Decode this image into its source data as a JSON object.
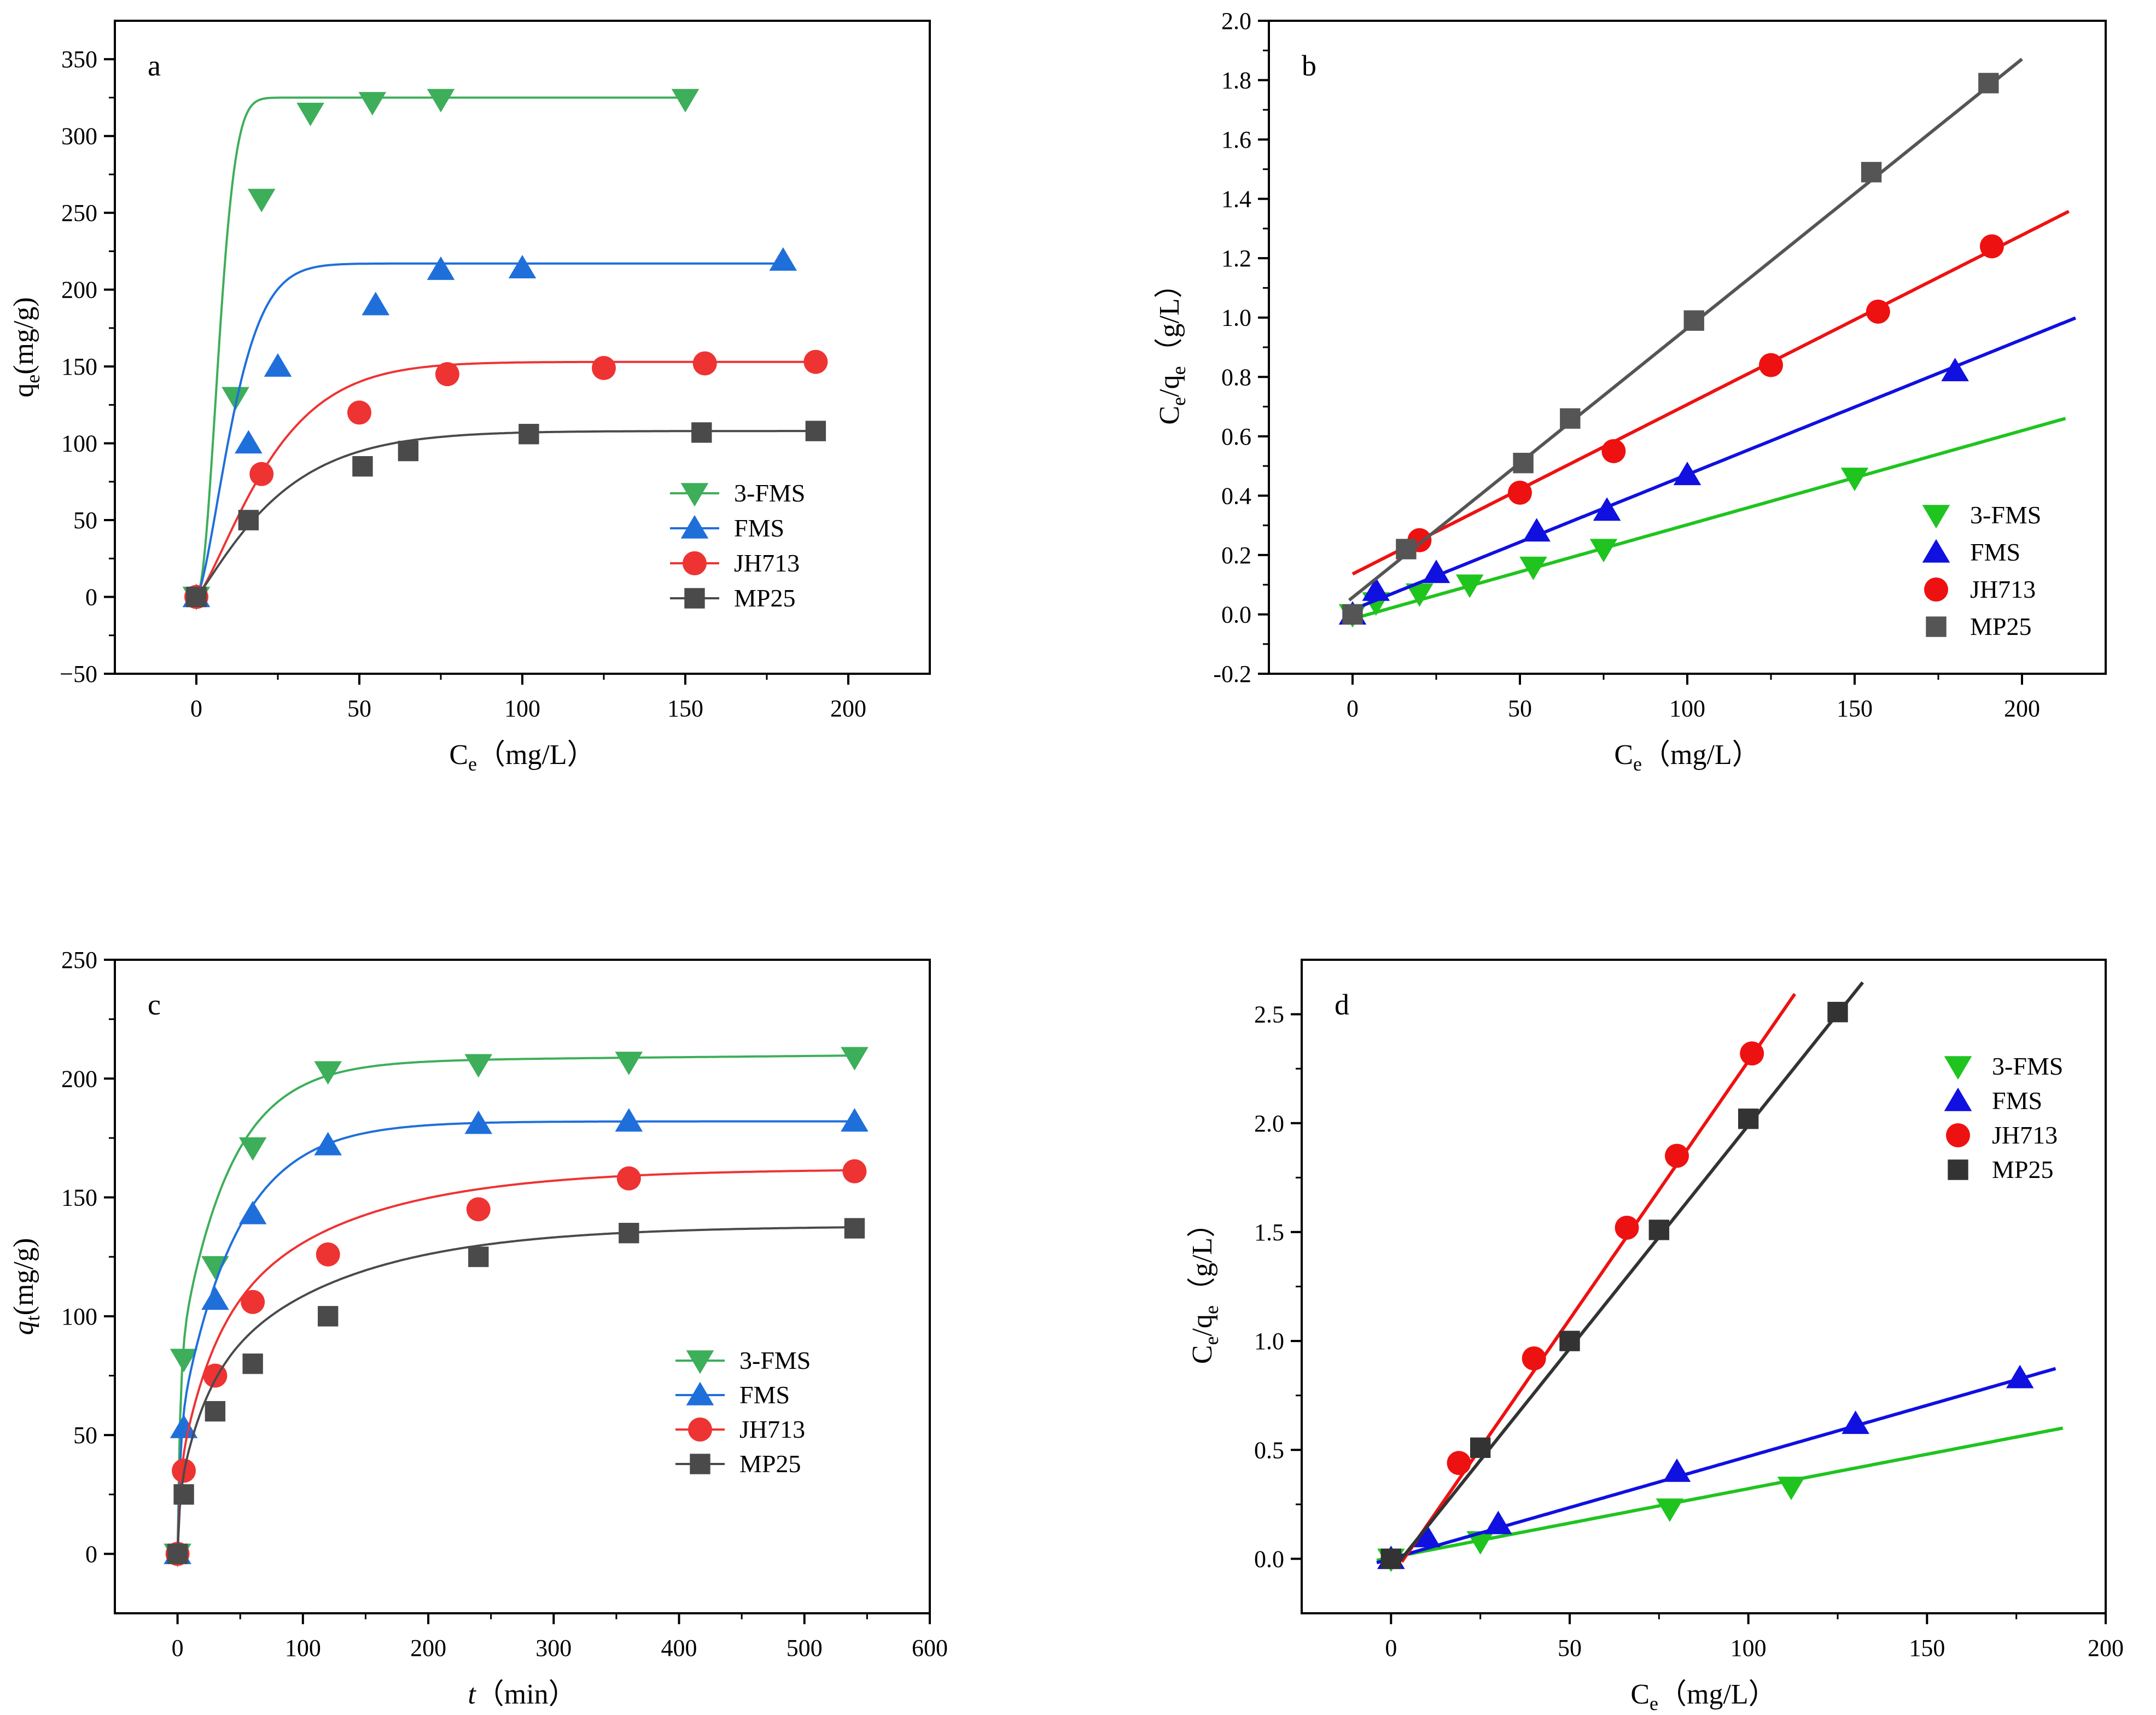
{
  "figure": {
    "colors": {
      "axis": "#000000",
      "green": "#3dae5a",
      "blue": "#1f6fdb",
      "red": "#ee3333",
      "black": "#4a4a4a"
    },
    "chart_data": [
      {
        "id": "a",
        "type": "scatter",
        "label": "a",
        "xlabel": {
          "main": "C",
          "sub": "e",
          "rest": "（mg/L）"
        },
        "ylabel": {
          "main": "q",
          "sub": "e",
          "rest": "(mg/g)"
        },
        "xlim": [
          -25,
          225
        ],
        "ylim": [
          -50,
          375
        ],
        "xticks": [
          0,
          50,
          100,
          150,
          200
        ],
        "xtick_labels": [
          "0",
          "50",
          "100",
          "150",
          "200"
        ],
        "yticks": [
          -50,
          0,
          50,
          100,
          150,
          200,
          250,
          300,
          350
        ],
        "ytick_labels": [
          "−50",
          "0",
          "50",
          "100",
          "150",
          "200",
          "250",
          "300",
          "350"
        ],
        "legend_position": "center-right",
        "legend_line_samples": true,
        "series": [
          {
            "name": "3-FMS",
            "marker": "triangle-down",
            "color": "#3dae5a",
            "line_width": 4,
            "x": [
              0,
              12,
              20,
              35,
              54,
              75,
              150
            ],
            "y": [
              0,
              130,
              259,
              315,
              322,
              324,
              324
            ],
            "fit": {
              "kind": "sigmoid",
              "a": 325,
              "k": 0.12,
              "n": 2
            }
          },
          {
            "name": "FMS",
            "marker": "triangle-up",
            "color": "#1f6fdb",
            "line_width": 4,
            "x": [
              0,
              16,
              25,
              55,
              75,
              100,
              180
            ],
            "y": [
              0,
              100,
              150,
              190,
              213,
              214,
              219
            ],
            "fit": {
              "kind": "sigmoid",
              "a": 217,
              "k": 0.075,
              "n": 1.5
            }
          },
          {
            "name": "JH713",
            "marker": "circle",
            "color": "#ee3333",
            "line_width": 4,
            "x": [
              0,
              20,
              50,
              77,
              125,
              156,
              190
            ],
            "y": [
              0,
              80,
              120,
              145,
              149,
              152,
              153
            ],
            "fit": {
              "kind": "sigmoid",
              "a": 153,
              "k": 0.04,
              "n": 1.3
            }
          },
          {
            "name": "MP25",
            "marker": "square",
            "color": "#4a4a4a",
            "line_width": 4,
            "x": [
              0,
              16,
              51,
              65,
              102,
              155,
              190
            ],
            "y": [
              0,
              50,
              85,
              95,
              106,
              107,
              108
            ],
            "fit": {
              "kind": "sigmoid",
              "a": 108,
              "k": 0.038,
              "n": 1.15
            }
          }
        ]
      },
      {
        "id": "b",
        "type": "scatter",
        "label": "b",
        "xlabel": {
          "main": "C",
          "sub": "e",
          "rest": "（mg/L）"
        },
        "ylabel": {
          "main": "C",
          "sub": "e",
          "mid": "/q",
          "sub2": "e",
          "rest": "（g/L）"
        },
        "xlim": [
          -25,
          225
        ],
        "ylim": [
          -0.2,
          2.0
        ],
        "xticks": [
          0,
          50,
          100,
          150,
          200
        ],
        "xtick_labels": [
          "0",
          "50",
          "100",
          "150",
          "200"
        ],
        "yticks": [
          -0.2,
          0,
          0.2,
          0.4,
          0.6,
          0.8,
          1.0,
          1.2,
          1.4,
          1.6,
          1.8,
          2.0
        ],
        "ytick_labels": [
          "-0.2",
          "0.0",
          "0.2",
          "0.4",
          "0.6",
          "0.8",
          "1.0",
          "1.2",
          "1.4",
          "1.6",
          "1.8",
          "2.0"
        ],
        "legend_position": "lower-right",
        "legend_line_samples": false,
        "series": [
          {
            "name": "3-FMS",
            "marker": "triangle-down",
            "color": "#1fc41f",
            "line_width": 6,
            "x": [
              0,
              7,
              20,
              35,
              54,
              75,
              150
            ],
            "y": [
              0.0,
              0.04,
              0.07,
              0.1,
              0.16,
              0.22,
              0.46
            ],
            "fit": {
              "kind": "line",
              "x0": -2,
              "x1": 213,
              "slope": 0.00317,
              "intercept": -0.015
            }
          },
          {
            "name": "FMS",
            "marker": "triangle-up",
            "color": "#1010e0",
            "line_width": 6,
            "x": [
              0,
              7,
              25,
              55,
              76,
              100,
              180
            ],
            "y": [
              0.0,
              0.08,
              0.14,
              0.28,
              0.35,
              0.47,
              0.82
            ],
            "fit": {
              "kind": "line",
              "x0": -2,
              "x1": 216,
              "slope": 0.00455,
              "intercept": 0.016
            }
          },
          {
            "name": "JH713",
            "marker": "circle",
            "color": "#ee1111",
            "line_width": 6,
            "x": [
              20,
              50,
              78,
              125,
              157,
              191
            ],
            "y": [
              0.25,
              0.41,
              0.55,
              0.84,
              1.02,
              1.24
            ],
            "fit": {
              "kind": "line",
              "x0": 0,
              "x1": 214,
              "slope": 0.00571,
              "intercept": 0.136
            }
          },
          {
            "name": "MP25",
            "marker": "square",
            "color": "#555555",
            "line_width": 6,
            "x": [
              0,
              16,
              51,
              65,
              102,
              155,
              190
            ],
            "y": [
              0.0,
              0.22,
              0.51,
              0.66,
              0.99,
              1.49,
              1.79
            ],
            "fit": {
              "kind": "line",
              "x0": -1,
              "x1": 200,
              "slope": 0.00907,
              "intercept": 0.057
            }
          }
        ]
      },
      {
        "id": "c",
        "type": "scatter",
        "label": "c",
        "xlabel": {
          "italic": "t",
          "rest": "（min）"
        },
        "ylabel": {
          "italic": "q",
          "sub": "t",
          "rest": "(mg/g)"
        },
        "xlim": [
          -50,
          600
        ],
        "ylim": [
          -25,
          250
        ],
        "xticks": [
          0,
          100,
          200,
          300,
          400,
          500,
          600
        ],
        "xtick_labels": [
          "0",
          "100",
          "200",
          "300",
          "400",
          "500",
          "600"
        ],
        "yticks": [
          0,
          50,
          100,
          150,
          200,
          250
        ],
        "ytick_labels": [
          "0",
          "50",
          "100",
          "150",
          "200",
          "250"
        ],
        "legend_position": "center-right",
        "legend_line_samples": true,
        "series": [
          {
            "name": "3-FMS",
            "marker": "triangle-down",
            "color": "#3dae5a",
            "line_width": 4,
            "x": [
              0,
              5,
              30,
              60,
              120,
              240,
              360,
              540
            ],
            "y": [
              0,
              82,
              121,
              171,
              203,
              206,
              207,
              209
            ],
            "fit": {
              "kind": "multiexp",
              "terms": [
                [
                  80,
                  0.5
                ],
                [
                  127,
                  0.025
                ]
              ],
              "lin": 0.005
            }
          },
          {
            "name": "FMS",
            "marker": "triangle-up",
            "color": "#1f6fdb",
            "line_width": 4,
            "x": [
              0,
              5,
              30,
              60,
              120,
              240,
              360,
              540
            ],
            "y": [
              0,
              53,
              107,
              143,
              172,
              181,
              182,
              182
            ],
            "fit": {
              "kind": "multiexp",
              "terms": [
                [
                  50,
                  0.5
                ],
                [
                  132,
                  0.022
                ]
              ],
              "lin": 0
            }
          },
          {
            "name": "JH713",
            "marker": "circle",
            "color": "#ee3333",
            "line_width": 4,
            "x": [
              0,
              5,
              30,
              60,
              120,
              240,
              360,
              540
            ],
            "y": [
              0,
              35,
              75,
              106,
              126,
              145,
              158,
              161
            ],
            "fit": {
              "kind": "multiexp",
              "terms": [
                [
                  30,
                  0.6
                ],
                [
                  58,
                  0.04
                ],
                [
                  74,
                  0.009
                ]
              ],
              "lin": 0
            }
          },
          {
            "name": "MP25",
            "marker": "square",
            "color": "#4a4a4a",
            "line_width": 4,
            "x": [
              0,
              5,
              30,
              60,
              120,
              240,
              360,
              540
            ],
            "y": [
              0,
              25,
              60,
              80,
              100,
              125,
              135,
              137
            ],
            "fit": {
              "kind": "multiexp",
              "terms": [
                [
                  22,
                  0.6
                ],
                [
                  44,
                  0.05
                ],
                [
                  72,
                  0.009
                ]
              ],
              "lin": 0
            }
          }
        ]
      },
      {
        "id": "d",
        "type": "scatter",
        "label": "d",
        "xlabel": {
          "main": "C",
          "sub": "e",
          "rest": "（mg/L）"
        },
        "ylabel": {
          "main": "C",
          "sub": "e",
          "mid": "/q",
          "sub2": "e",
          "rest": "（g/L）"
        },
        "xlim": [
          -25,
          200
        ],
        "ylim": [
          -0.25,
          2.75
        ],
        "xticks": [
          0,
          50,
          100,
          150,
          200
        ],
        "xtick_labels": [
          "0",
          "50",
          "100",
          "150",
          "200"
        ],
        "yticks": [
          0,
          0.5,
          1.0,
          1.5,
          2.0,
          2.5
        ],
        "ytick_labels": [
          "0.0",
          "0.5",
          "1.0",
          "1.5",
          "2.0",
          "2.5"
        ],
        "legend_position": "top-right",
        "legend_line_samples": false,
        "series": [
          {
            "name": "3-FMS",
            "marker": "triangle-down",
            "color": "#1fc41f",
            "line_width": 6,
            "x": [
              0,
              25,
              78,
              112
            ],
            "y": [
              0,
              0.08,
              0.23,
              0.33
            ],
            "fit": {
              "kind": "line",
              "x0": -4,
              "x1": 188,
              "slope": 0.00316,
              "intercept": 0.006
            }
          },
          {
            "name": "FMS",
            "marker": "triangle-up",
            "color": "#1010e0",
            "line_width": 6,
            "x": [
              0,
              10,
              30,
              80,
              130,
              176
            ],
            "y": [
              0,
              0.1,
              0.16,
              0.4,
              0.62,
              0.83
            ],
            "fit": {
              "kind": "line",
              "x0": -4,
              "x1": 186,
              "slope": 0.00469,
              "intercept": 0.001
            }
          },
          {
            "name": "JH713",
            "marker": "circle",
            "color": "#ee1111",
            "line_width": 6,
            "x": [
              19,
              40,
              66,
              80,
              101
            ],
            "y": [
              0.44,
              0.92,
              1.52,
              1.85,
              2.32
            ],
            "fit": {
              "kind": "line",
              "x0": 3,
              "x1": 113,
              "slope": 0.0237,
              "intercept": -0.085
            }
          },
          {
            "name": "MP25",
            "marker": "square",
            "color": "#333333",
            "line_width": 6,
            "x": [
              0,
              25,
              50,
              75,
              100,
              125
            ],
            "y": [
              0,
              0.51,
              1.0,
              1.51,
              2.02,
              2.51
            ],
            "fit": {
              "kind": "line",
              "x0": 2,
              "x1": 132,
              "slope": 0.0205,
              "intercept": -0.06
            }
          }
        ]
      }
    ]
  }
}
